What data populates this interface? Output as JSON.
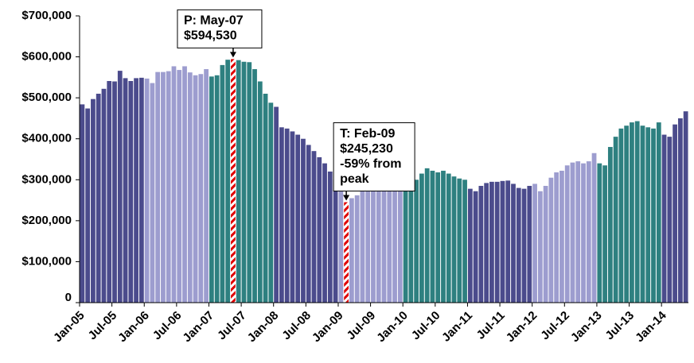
{
  "chart_data": {
    "type": "bar",
    "categories": [
      "Jan-05",
      null,
      null,
      null,
      null,
      null,
      "Jul-05",
      null,
      null,
      null,
      null,
      null,
      "Jan-06",
      null,
      null,
      null,
      null,
      null,
      "Jul-06",
      null,
      null,
      null,
      null,
      null,
      "Jan-07",
      null,
      null,
      null,
      null,
      null,
      "Jul-07",
      null,
      null,
      null,
      null,
      null,
      "Jan-08",
      null,
      null,
      null,
      null,
      null,
      "Jul-08",
      null,
      null,
      null,
      null,
      null,
      "Jan-09",
      null,
      null,
      null,
      null,
      null,
      "Jul-09",
      null,
      null,
      null,
      null,
      null,
      "Jan-10",
      null,
      null,
      null,
      null,
      null,
      "Jul-10",
      null,
      null,
      null,
      null,
      null,
      "Jan-11",
      null,
      null,
      null,
      null,
      null,
      "Jul-11",
      null,
      null,
      null,
      null,
      null,
      "Jan-12",
      null,
      null,
      null,
      null,
      null,
      "Jul-12",
      null,
      null,
      null,
      null,
      null,
      "Jan-13",
      null,
      null,
      null,
      null,
      null,
      "Jul-13",
      null,
      null,
      null,
      null,
      null,
      "Jan-14",
      null,
      null,
      null,
      null
    ],
    "values": [
      484000,
      474000,
      497000,
      510000,
      522000,
      541000,
      540000,
      566000,
      548000,
      541000,
      548000,
      549000,
      547000,
      536000,
      563000,
      563000,
      565000,
      577000,
      568000,
      577000,
      562000,
      555000,
      558000,
      570000,
      552000,
      555000,
      580000,
      593000,
      594530,
      592000,
      588000,
      587000,
      570000,
      540000,
      510000,
      488000,
      478000,
      428000,
      425000,
      418000,
      410000,
      400000,
      385000,
      370000,
      355000,
      340000,
      320000,
      300000,
      290000,
      245230,
      255000,
      262000,
      272000,
      282000,
      290000,
      295000,
      298000,
      300000,
      300000,
      302000,
      285000,
      280000,
      300000,
      315000,
      328000,
      322000,
      318000,
      322000,
      315000,
      308000,
      303000,
      300000,
      278000,
      272000,
      285000,
      292000,
      295000,
      295000,
      297000,
      298000,
      290000,
      280000,
      278000,
      285000,
      290000,
      272000,
      285000,
      305000,
      318000,
      322000,
      335000,
      342000,
      345000,
      340000,
      345000,
      365000,
      340000,
      335000,
      380000,
      405000,
      425000,
      432000,
      440000,
      443000,
      432000,
      428000,
      425000,
      440000,
      410000,
      405000,
      435000,
      450000,
      467000
    ],
    "year_colors": [
      "#4b4b8c",
      "#9d9dcf",
      "#2e8080"
    ],
    "highlight_color": "#e00000",
    "ylim": [
      0,
      700000
    ],
    "yticks": [
      0,
      {
        "value": 100000,
        "label": "$100,000"
      },
      {
        "value": 200000,
        "label": "$200,000"
      },
      {
        "value": 300000,
        "label": "$300,000"
      },
      {
        "value": 400000,
        "label": "$400,000"
      },
      {
        "value": 500000,
        "label": "$500,000"
      },
      {
        "value": 600000,
        "label": "$600,000"
      },
      {
        "value": 700000,
        "label": "$700,000"
      }
    ],
    "annotations": [
      {
        "index": 28,
        "lines": [
          "P: May-07"
        ],
        "value_label": "$594,530"
      },
      {
        "index": 49,
        "lines": [
          "T: Feb-09"
        ],
        "value_label": "$245,230",
        "note": [
          "-59% from",
          "peak"
        ]
      }
    ]
  }
}
